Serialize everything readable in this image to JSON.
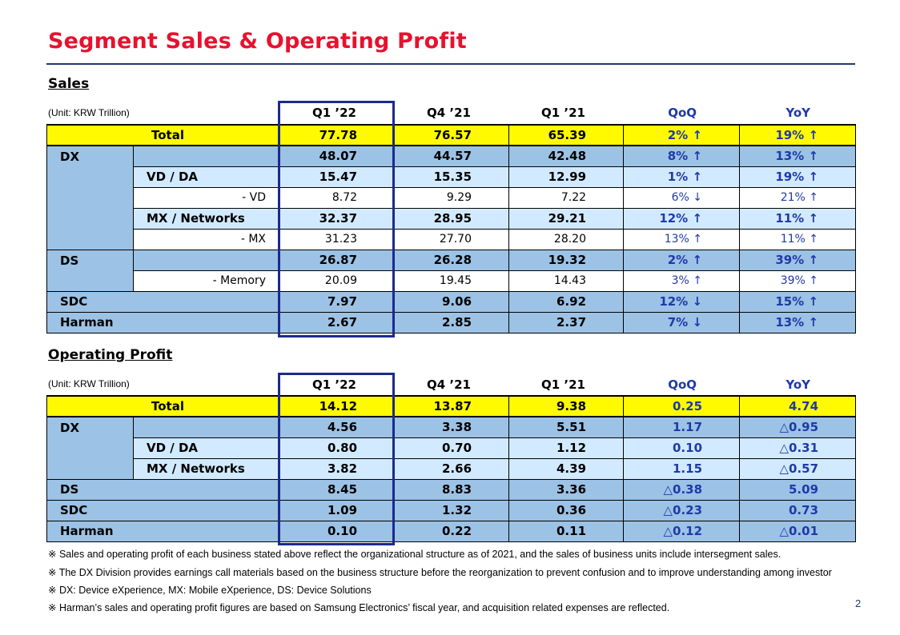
{
  "title": "Segment Sales & Operating Profit",
  "sales": {
    "heading": "Sales",
    "unit": "(Unit: KRW Trillion)",
    "columns": [
      "Q1 ’22",
      "Q4 ’21",
      "Q1 ’21",
      "QoQ",
      "YoY"
    ],
    "rows": [
      {
        "label": "Total",
        "values": [
          "77.78",
          "76.57",
          "65.39",
          "2% ↑",
          "19% ↑"
        ]
      },
      {
        "label": "DX",
        "values": [
          "48.07",
          "44.57",
          "42.48",
          "8% ↑",
          "13% ↑"
        ]
      },
      {
        "label": "VD / DA",
        "values": [
          "15.47",
          "15.35",
          "12.99",
          "1% ↑",
          "19% ↑"
        ]
      },
      {
        "label": "- VD",
        "values": [
          "8.72",
          "9.29",
          "7.22",
          "6% ↓",
          "21% ↑"
        ]
      },
      {
        "label": "MX / Networks",
        "values": [
          "32.37",
          "28.95",
          "29.21",
          "12% ↑",
          "11% ↑"
        ]
      },
      {
        "label": "- MX",
        "values": [
          "31.23",
          "27.70",
          "28.20",
          "13% ↑",
          "11% ↑"
        ]
      },
      {
        "label": "DS",
        "values": [
          "26.87",
          "26.28",
          "19.32",
          "2% ↑",
          "39% ↑"
        ]
      },
      {
        "label": "- Memory",
        "values": [
          "20.09",
          "19.45",
          "14.43",
          "3% ↑",
          "39% ↑"
        ]
      },
      {
        "label": "SDC",
        "values": [
          "7.97",
          "9.06",
          "6.92",
          "12% ↓",
          "15% ↑"
        ]
      },
      {
        "label": "Harman",
        "values": [
          "2.67",
          "2.85",
          "2.37",
          "7% ↓",
          "13% ↑"
        ]
      }
    ]
  },
  "op": {
    "heading": "Operating Profit",
    "unit": "(Unit: KRW Trillion)",
    "columns": [
      "Q1 ’22",
      "Q4 ’21",
      "Q1 ’21",
      "QoQ",
      "YoY"
    ],
    "rows": [
      {
        "label": "Total",
        "values": [
          "14.12",
          "13.87",
          "9.38",
          "0.25",
          "4.74"
        ]
      },
      {
        "label": "DX",
        "values": [
          "4.56",
          "3.38",
          "5.51",
          "1.17",
          "△0.95"
        ]
      },
      {
        "label": "VD / DA",
        "values": [
          "0.80",
          "0.70",
          "1.12",
          "0.10",
          "△0.31"
        ]
      },
      {
        "label": "MX / Networks",
        "values": [
          "3.82",
          "2.66",
          "4.39",
          "1.15",
          "△0.57"
        ]
      },
      {
        "label": "DS",
        "values": [
          "8.45",
          "8.83",
          "3.36",
          "△0.38",
          "5.09"
        ]
      },
      {
        "label": "SDC",
        "values": [
          "1.09",
          "1.32",
          "0.36",
          "△0.23",
          "0.73"
        ]
      },
      {
        "label": "Harman",
        "values": [
          "0.10",
          "0.22",
          "0.11",
          "△0.12",
          "△0.01"
        ]
      }
    ]
  },
  "notes": [
    "※ Sales and operating profit of each business stated above reflect the organizational structure  as of 2021, and the sales of business units include intersegment sales.",
    "※ The DX Division provides earnings call materials based on the business structure before the reorganization to prevent confusion and to improve understanding among investor",
    "※ DX: Device eXperience, MX: Mobile eXperience, DS: Device Solutions",
    "※ Harman’s sales and operating profit figures are based on Samsung Electronics’ fiscal year, and acquisition related expenses are reflected."
  ],
  "page_number": "2",
  "colors": {
    "title": "#e8112d",
    "total_row": "#fffa00",
    "main_row": "#9cc2e5",
    "sub_row": "#d2eaff",
    "accent_blue": "#1f3aa8",
    "highlight_border": "#1b2a8c"
  }
}
